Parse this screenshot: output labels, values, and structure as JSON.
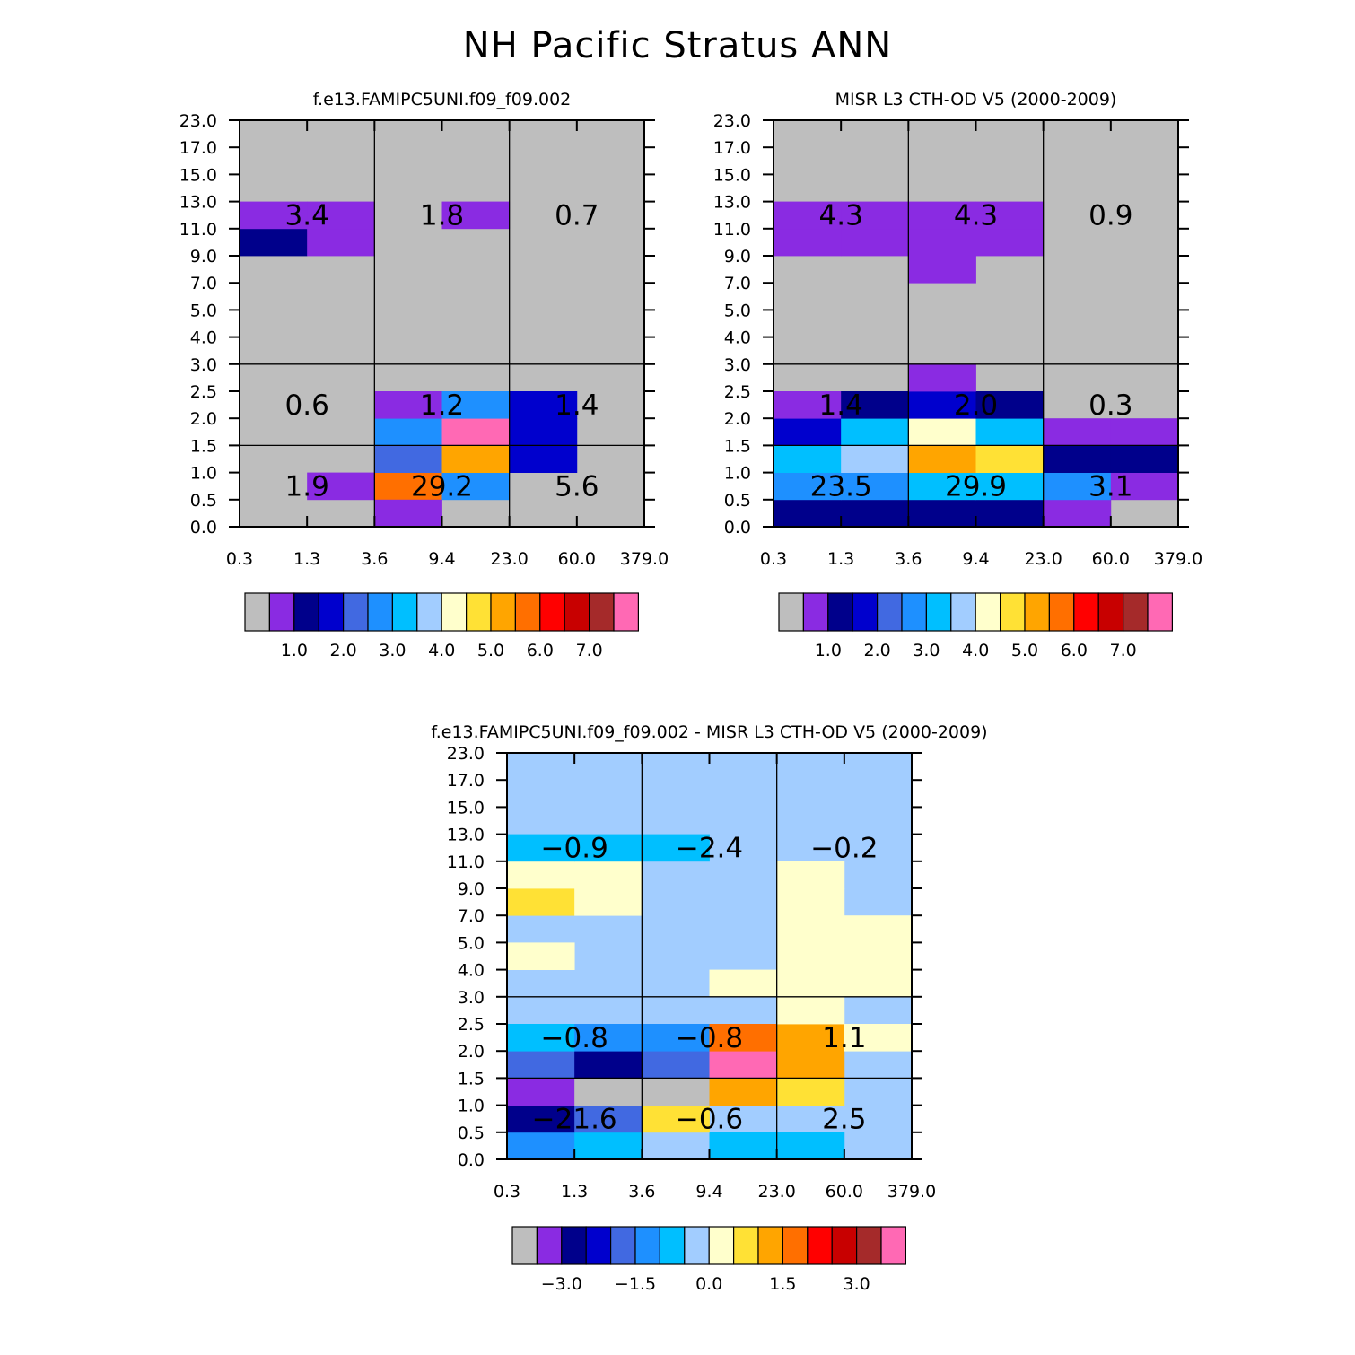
{
  "page_title": "NH Pacific Stratus ANN",
  "chart_data": [
    {
      "type": "heatmap",
      "title": "f.e13.FAMIPC5UNI.f09_f09.002",
      "x_ticks": [
        "0.3",
        "1.3",
        "3.6",
        "9.4",
        "23.0",
        "60.0",
        "379.0"
      ],
      "y_ticks": [
        "0.0",
        "0.5",
        "1.0",
        "1.5",
        "2.0",
        "2.5",
        "3.0",
        "4.0",
        "5.0",
        "7.0",
        "9.0",
        "11.0",
        "13.0",
        "15.0",
        "17.0",
        "23.0"
      ],
      "cells": [
        {
          "x": 1,
          "y": 1,
          "c": 1
        },
        {
          "x": 2,
          "y": 1,
          "c": 11
        },
        {
          "x": 3,
          "y": 1,
          "c": 5
        },
        {
          "x": 2,
          "y": 0,
          "c": 1
        },
        {
          "x": 2,
          "y": 2,
          "c": 4
        },
        {
          "x": 3,
          "y": 2,
          "c": 10
        },
        {
          "x": 2,
          "y": 3,
          "c": 5
        },
        {
          "x": 3,
          "y": 3,
          "c": 15
        },
        {
          "x": 2,
          "y": 4,
          "c": 1
        },
        {
          "x": 3,
          "y": 4,
          "c": 5
        },
        {
          "x": 4,
          "y": 2,
          "c": 3
        },
        {
          "x": 4,
          "y": 3,
          "c": 3
        },
        {
          "x": 4,
          "y": 4,
          "c": 3
        },
        {
          "x": 0,
          "y": 10,
          "c": 2
        },
        {
          "x": 1,
          "y": 10,
          "c": 1
        },
        {
          "x": 0,
          "y": 11,
          "c": 1
        },
        {
          "x": 1,
          "y": 11,
          "c": 1
        },
        {
          "x": 3,
          "y": 11,
          "c": 1
        }
      ],
      "box_values": [
        [
          "1.9",
          "29.2",
          "5.6"
        ],
        [
          "0.6",
          "1.2",
          "1.4"
        ],
        [
          "3.4",
          "1.8",
          "0.7"
        ]
      ],
      "colorbar": {
        "colors": [
          "#bebebe",
          "#8a2be2",
          "#00008b",
          "#0000cd",
          "#4169e1",
          "#1e90ff",
          "#00bfff",
          "#a2cdff",
          "#ffffcc",
          "#ffe135",
          "#ffa500",
          "#ff6f00",
          "#ff0000",
          "#c80000",
          "#a52a2a",
          "#ff69b4"
        ],
        "labels": [
          "1.0",
          "2.0",
          "3.0",
          "4.0",
          "5.0",
          "6.0",
          "7.0"
        ]
      }
    },
    {
      "type": "heatmap",
      "title": "MISR L3 CTH-OD V5 (2000-2009)",
      "x_ticks": [
        "0.3",
        "1.3",
        "3.6",
        "9.4",
        "23.0",
        "60.0",
        "379.0"
      ],
      "y_ticks": [
        "0.0",
        "0.5",
        "1.0",
        "1.5",
        "2.0",
        "2.5",
        "3.0",
        "4.0",
        "5.0",
        "7.0",
        "9.0",
        "11.0",
        "13.0",
        "15.0",
        "17.0",
        "23.0"
      ],
      "cells": [
        {
          "x": 0,
          "y": 0,
          "c": 2
        },
        {
          "x": 1,
          "y": 0,
          "c": 2
        },
        {
          "x": 2,
          "y": 0,
          "c": 2
        },
        {
          "x": 3,
          "y": 0,
          "c": 2
        },
        {
          "x": 4,
          "y": 0,
          "c": 1
        },
        {
          "x": 0,
          "y": 1,
          "c": 5
        },
        {
          "x": 1,
          "y": 1,
          "c": 5
        },
        {
          "x": 2,
          "y": 1,
          "c": 6
        },
        {
          "x": 3,
          "y": 1,
          "c": 6
        },
        {
          "x": 4,
          "y": 1,
          "c": 5
        },
        {
          "x": 5,
          "y": 1,
          "c": 1
        },
        {
          "x": 0,
          "y": 2,
          "c": 6
        },
        {
          "x": 1,
          "y": 2,
          "c": 7
        },
        {
          "x": 2,
          "y": 2,
          "c": 10
        },
        {
          "x": 3,
          "y": 2,
          "c": 9
        },
        {
          "x": 4,
          "y": 2,
          "c": 2
        },
        {
          "x": 5,
          "y": 2,
          "c": 2
        },
        {
          "x": 0,
          "y": 3,
          "c": 3
        },
        {
          "x": 1,
          "y": 3,
          "c": 6
        },
        {
          "x": 2,
          "y": 3,
          "c": 8
        },
        {
          "x": 3,
          "y": 3,
          "c": 6
        },
        {
          "x": 4,
          "y": 3,
          "c": 1
        },
        {
          "x": 5,
          "y": 3,
          "c": 1
        },
        {
          "x": 0,
          "y": 4,
          "c": 1
        },
        {
          "x": 1,
          "y": 4,
          "c": 2
        },
        {
          "x": 2,
          "y": 4,
          "c": 3
        },
        {
          "x": 3,
          "y": 4,
          "c": 2
        },
        {
          "x": 2,
          "y": 5,
          "c": 1
        },
        {
          "x": 0,
          "y": 10,
          "c": 1
        },
        {
          "x": 1,
          "y": 10,
          "c": 1
        },
        {
          "x": 2,
          "y": 10,
          "c": 1
        },
        {
          "x": 3,
          "y": 10,
          "c": 1
        },
        {
          "x": 0,
          "y": 11,
          "c": 1
        },
        {
          "x": 1,
          "y": 11,
          "c": 1
        },
        {
          "x": 2,
          "y": 11,
          "c": 1
        },
        {
          "x": 3,
          "y": 11,
          "c": 1
        },
        {
          "x": 2,
          "y": 9,
          "c": 1
        }
      ],
      "box_values": [
        [
          "23.5",
          "29.9",
          "3.1"
        ],
        [
          "1.4",
          "2.0",
          "0.3"
        ],
        [
          "4.3",
          "4.3",
          "0.9"
        ]
      ],
      "colorbar": {
        "colors": [
          "#bebebe",
          "#8a2be2",
          "#00008b",
          "#0000cd",
          "#4169e1",
          "#1e90ff",
          "#00bfff",
          "#a2cdff",
          "#ffffcc",
          "#ffe135",
          "#ffa500",
          "#ff6f00",
          "#ff0000",
          "#c80000",
          "#a52a2a",
          "#ff69b4"
        ],
        "labels": [
          "1.0",
          "2.0",
          "3.0",
          "4.0",
          "5.0",
          "6.0",
          "7.0"
        ]
      }
    },
    {
      "type": "heatmap",
      "title": "f.e13.FAMIPC5UNI.f09_f09.002 - MISR L3 CTH-OD V5 (2000-2009)",
      "default_color_index": 7,
      "x_ticks": [
        "0.3",
        "1.3",
        "3.6",
        "9.4",
        "23.0",
        "60.0",
        "379.0"
      ],
      "y_ticks": [
        "0.0",
        "0.5",
        "1.0",
        "1.5",
        "2.0",
        "2.5",
        "3.0",
        "4.0",
        "5.0",
        "7.0",
        "9.0",
        "11.0",
        "13.0",
        "15.0",
        "17.0",
        "23.0"
      ],
      "cells": [
        {
          "x": 0,
          "y": 0,
          "c": 5
        },
        {
          "x": 1,
          "y": 0,
          "c": 6
        },
        {
          "x": 3,
          "y": 0,
          "c": 6
        },
        {
          "x": 4,
          "y": 0,
          "c": 6
        },
        {
          "x": 0,
          "y": 1,
          "c": 2
        },
        {
          "x": 1,
          "y": 1,
          "c": 4
        },
        {
          "x": 2,
          "y": 1,
          "c": 9
        },
        {
          "x": 0,
          "y": 2,
          "c": 1
        },
        {
          "x": 1,
          "y": 2,
          "c": 0
        },
        {
          "x": 2,
          "y": 2,
          "c": 0
        },
        {
          "x": 3,
          "y": 2,
          "c": 10
        },
        {
          "x": 4,
          "y": 2,
          "c": 9
        },
        {
          "x": 0,
          "y": 3,
          "c": 4
        },
        {
          "x": 1,
          "y": 3,
          "c": 2
        },
        {
          "x": 2,
          "y": 3,
          "c": 4
        },
        {
          "x": 3,
          "y": 3,
          "c": 15
        },
        {
          "x": 4,
          "y": 3,
          "c": 10
        },
        {
          "x": 0,
          "y": 4,
          "c": 6
        },
        {
          "x": 1,
          "y": 4,
          "c": 5
        },
        {
          "x": 2,
          "y": 4,
          "c": 5
        },
        {
          "x": 3,
          "y": 4,
          "c": 11
        },
        {
          "x": 4,
          "y": 4,
          "c": 10
        },
        {
          "x": 5,
          "y": 4,
          "c": 8
        },
        {
          "x": 4,
          "y": 5,
          "c": 8
        },
        {
          "x": 3,
          "y": 6,
          "c": 8
        },
        {
          "x": 4,
          "y": 6,
          "c": 8
        },
        {
          "x": 5,
          "y": 6,
          "c": 8
        },
        {
          "x": 0,
          "y": 7,
          "c": 8
        },
        {
          "x": 4,
          "y": 7,
          "c": 8
        },
        {
          "x": 5,
          "y": 7,
          "c": 8
        },
        {
          "x": 4,
          "y": 8,
          "c": 8
        },
        {
          "x": 5,
          "y": 8,
          "c": 8
        },
        {
          "x": 0,
          "y": 9,
          "c": 9
        },
        {
          "x": 1,
          "y": 9,
          "c": 8
        },
        {
          "x": 4,
          "y": 9,
          "c": 8
        },
        {
          "x": 0,
          "y": 10,
          "c": 8
        },
        {
          "x": 1,
          "y": 10,
          "c": 8
        },
        {
          "x": 4,
          "y": 10,
          "c": 8
        },
        {
          "x": 0,
          "y": 11,
          "c": 6
        },
        {
          "x": 1,
          "y": 11,
          "c": 6
        },
        {
          "x": 2,
          "y": 11,
          "c": 6
        }
      ],
      "box_values": [
        [
          "-21.6",
          "-0.6",
          "2.5"
        ],
        [
          "-0.8",
          "-0.8",
          "1.1"
        ],
        [
          "-0.9",
          "-2.4",
          "-0.2"
        ]
      ],
      "colorbar": {
        "colors": [
          "#bebebe",
          "#8a2be2",
          "#00008b",
          "#0000cd",
          "#4169e1",
          "#1e90ff",
          "#00bfff",
          "#a2cdff",
          "#ffffcc",
          "#ffe135",
          "#ffa500",
          "#ff6f00",
          "#ff0000",
          "#c80000",
          "#a52a2a",
          "#ff69b4"
        ],
        "labels": [
          "-3.0",
          "-1.5",
          "0.0",
          "1.5",
          "3.0"
        ]
      }
    }
  ]
}
